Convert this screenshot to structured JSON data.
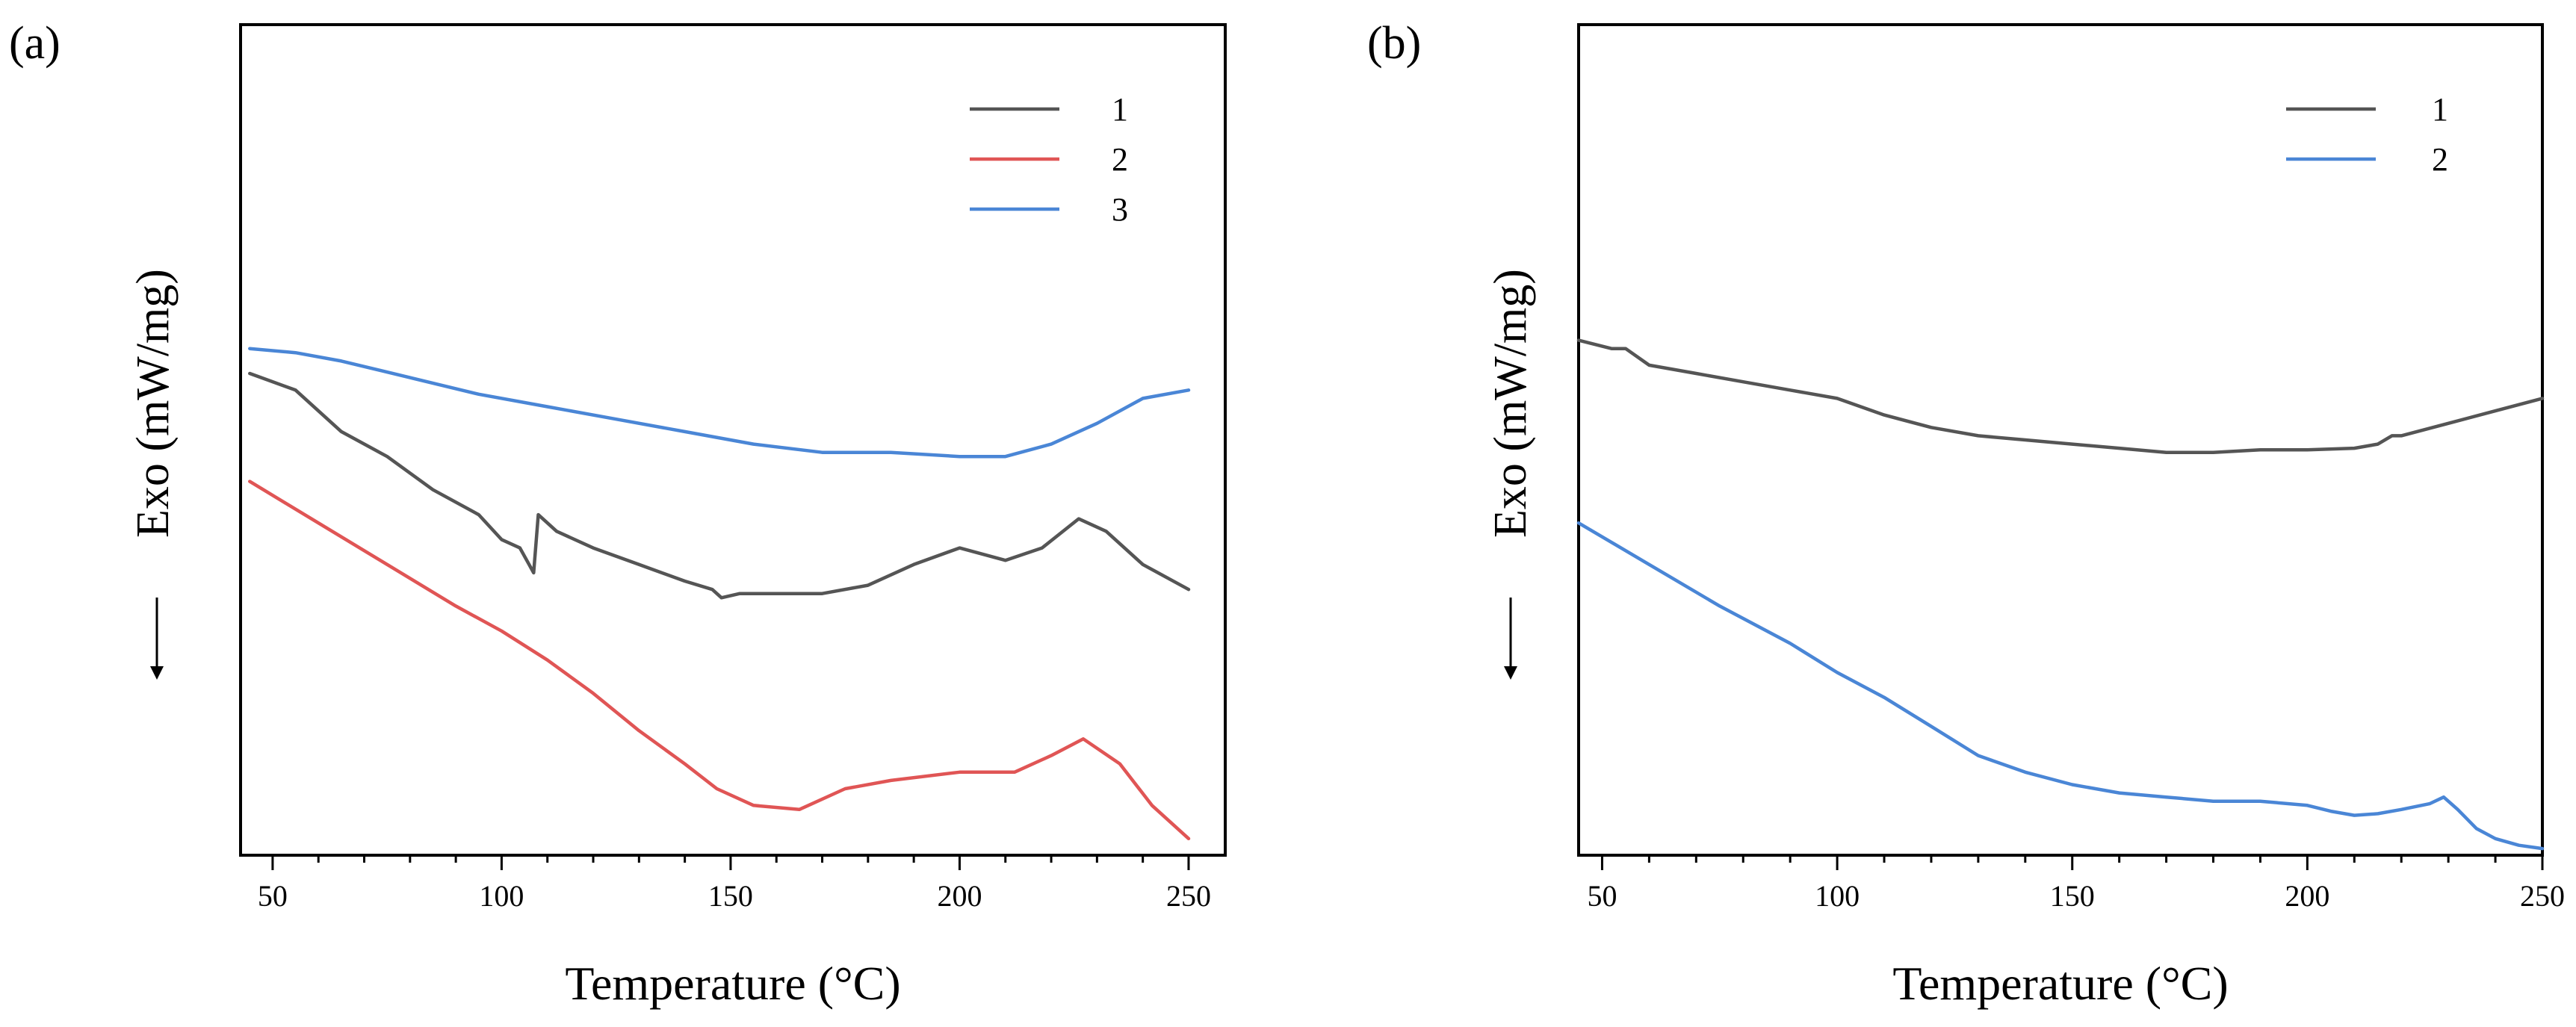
{
  "chart_data": [
    {
      "type": "line",
      "panel_label": "(a)",
      "xlabel": "Temperature (°C)",
      "ylabel": "Exo (mW/mg)",
      "ylabel_arrow": "down",
      "xlim": [
        43,
        258
      ],
      "ylim": [
        0,
        100
      ],
      "xticks": [
        50,
        100,
        150,
        200,
        250
      ],
      "yticks_shown": false,
      "legend_position": "top-right",
      "series": [
        {
          "name": "1",
          "color": "#555555",
          "x": [
            45,
            55,
            65,
            75,
            85,
            95,
            100,
            104,
            106,
            107,
            108,
            112,
            120,
            130,
            140,
            146,
            148,
            152,
            160,
            170,
            180,
            190,
            200,
            210,
            218,
            226,
            232,
            240,
            250
          ],
          "y": [
            58,
            56,
            51,
            48,
            44,
            41,
            38,
            37,
            35,
            34,
            41,
            39,
            37,
            35,
            33,
            32,
            31,
            31.5,
            31.5,
            31.5,
            32.5,
            35,
            37,
            35.5,
            37,
            40.5,
            39,
            35,
            32
          ]
        },
        {
          "name": "2",
          "color": "#e05555",
          "x": [
            45,
            60,
            75,
            90,
            100,
            110,
            120,
            130,
            140,
            147,
            155,
            165,
            175,
            185,
            200,
            212,
            220,
            227,
            235,
            242,
            250
          ],
          "y": [
            45,
            40,
            35,
            30,
            27,
            23.5,
            19.5,
            15,
            11,
            8,
            6,
            5.5,
            8,
            9,
            10,
            10,
            12,
            14,
            11,
            6,
            2
          ]
        },
        {
          "name": "3",
          "color": "#4a86d6",
          "x": [
            45,
            55,
            65,
            80,
            95,
            110,
            125,
            140,
            155,
            170,
            185,
            200,
            210,
            220,
            230,
            240,
            250
          ],
          "y": [
            61,
            60.5,
            59.5,
            57.5,
            55.5,
            54,
            52.5,
            51,
            49.5,
            48.5,
            48.5,
            48,
            48,
            49.5,
            52,
            55,
            56
          ]
        }
      ]
    },
    {
      "type": "line",
      "panel_label": "(b)",
      "xlabel": "Temperature (°C)",
      "ylabel": "Exo (mW/mg)",
      "ylabel_arrow": "down",
      "xlim": [
        45,
        250
      ],
      "ylim": [
        0,
        100
      ],
      "xticks": [
        50,
        100,
        150,
        200,
        250
      ],
      "yticks_shown": false,
      "legend_position": "top-right",
      "series": [
        {
          "name": "1",
          "color": "#555555",
          "x": [
            45,
            52,
            55,
            60,
            70,
            80,
            90,
            100,
            110,
            120,
            130,
            140,
            150,
            160,
            170,
            180,
            190,
            200,
            210,
            215,
            218,
            220,
            230,
            240,
            250
          ],
          "y": [
            62,
            61,
            61,
            59,
            58,
            57,
            56,
            55,
            53,
            51.5,
            50.5,
            50,
            49.5,
            49,
            48.5,
            48.5,
            48.8,
            48.8,
            49,
            49.5,
            50.5,
            50.5,
            52,
            53.5,
            55
          ]
        },
        {
          "name": "2",
          "color": "#4a86d6",
          "x": [
            45,
            60,
            75,
            90,
            100,
            110,
            120,
            130,
            140,
            150,
            160,
            170,
            180,
            190,
            200,
            205,
            210,
            215,
            220,
            226,
            229,
            232,
            236,
            240,
            245,
            250
          ],
          "y": [
            40,
            35,
            30,
            25.5,
            22,
            19,
            15.5,
            12,
            10,
            8.5,
            7.5,
            7,
            6.5,
            6.5,
            6,
            5.3,
            4.8,
            5,
            5.5,
            6.2,
            7,
            5.5,
            3.2,
            2,
            1.2,
            0.8
          ]
        }
      ]
    }
  ]
}
